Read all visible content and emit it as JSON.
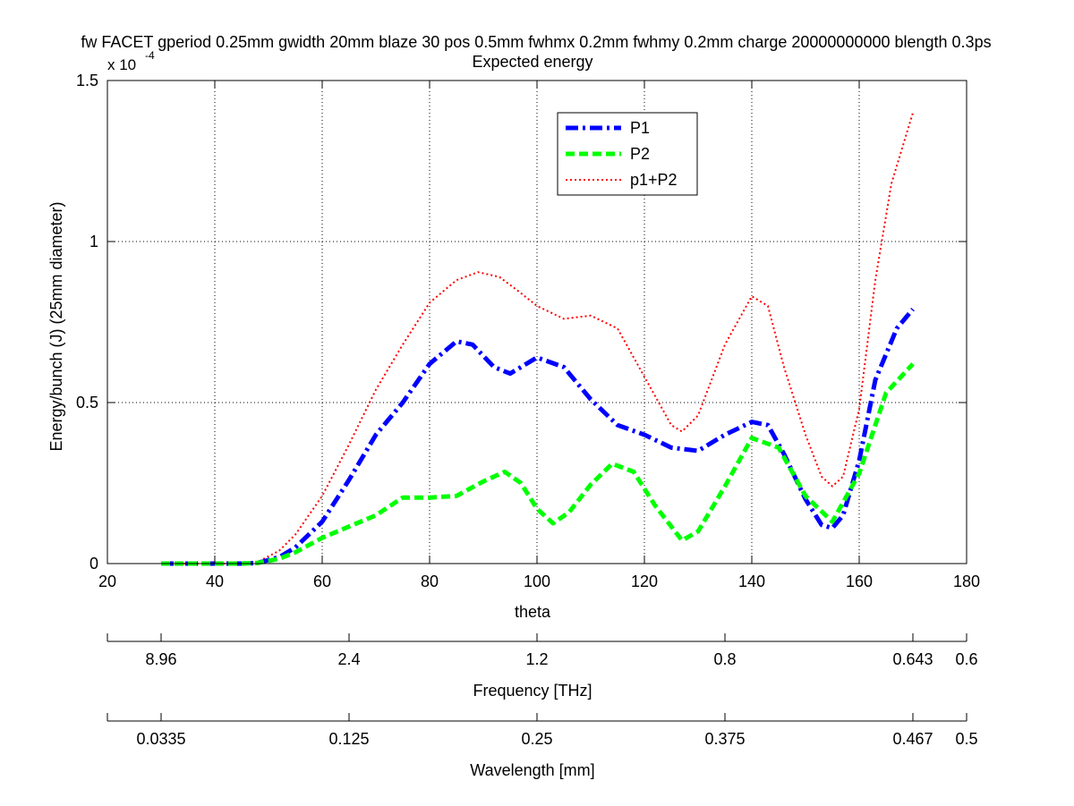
{
  "title": "fw FACET gperiod 0.25mm gwidth 20mm blaze 30 pos 0.5mm fwhmx 0.2mm fwhmy 0.2mm charge 20000000000 blength 0.3ps",
  "subtitle": "Expected energy",
  "exponent_base": "x 10",
  "exponent_power": "-4",
  "chart_data": {
    "type": "line",
    "title": "fw FACET gperiod 0.25mm gwidth 20mm blaze 30 pos 0.5mm fwhmx 0.2mm fwhmy 0.2mm charge 20000000000 blength 0.3ps",
    "subtitle": "Expected energy",
    "xlabel": "theta",
    "ylabel": "Energy/bunch (J) (25mm diameter)",
    "xlim": [
      20,
      180
    ],
    "ylim": [
      0,
      1.5
    ],
    "y_scale_multiplier": "x 10^-4",
    "xticks": [
      20,
      40,
      60,
      80,
      100,
      120,
      140,
      160,
      180
    ],
    "yticks": [
      0,
      0.5,
      1,
      1.5
    ],
    "ytick_labels": [
      "0",
      "0.5",
      "1",
      "1.5"
    ],
    "grid": true,
    "legend_position": "top-center",
    "series": [
      {
        "name": "P1",
        "color": "#0000ff",
        "style": "dash-dot",
        "x": [
          30,
          45,
          48,
          52,
          55,
          60,
          65,
          70,
          75,
          80,
          85,
          88,
          92,
          95,
          100,
          105,
          110,
          115,
          120,
          125,
          130,
          135,
          140,
          143,
          146,
          150,
          153,
          155,
          157,
          160,
          163,
          167,
          170
        ],
        "y": [
          0,
          0,
          0.002,
          0.02,
          0.05,
          0.13,
          0.26,
          0.4,
          0.5,
          0.62,
          0.69,
          0.68,
          0.61,
          0.59,
          0.64,
          0.61,
          0.51,
          0.43,
          0.4,
          0.36,
          0.35,
          0.4,
          0.44,
          0.43,
          0.34,
          0.2,
          0.12,
          0.11,
          0.15,
          0.32,
          0.57,
          0.73,
          0.79
        ]
      },
      {
        "name": "P2",
        "color": "#00ff00",
        "style": "dashed",
        "x": [
          30,
          45,
          48,
          52,
          55,
          60,
          65,
          70,
          75,
          80,
          85,
          90,
          94,
          97,
          100,
          103,
          106,
          110,
          114,
          118,
          122,
          127,
          130,
          135,
          140,
          145,
          150,
          155,
          160,
          165,
          170
        ],
        "y": [
          0,
          0,
          0.002,
          0.015,
          0.035,
          0.08,
          0.115,
          0.15,
          0.205,
          0.205,
          0.21,
          0.255,
          0.285,
          0.25,
          0.17,
          0.125,
          0.16,
          0.245,
          0.31,
          0.285,
          0.18,
          0.072,
          0.1,
          0.24,
          0.39,
          0.36,
          0.21,
          0.13,
          0.28,
          0.53,
          0.62
        ]
      },
      {
        "name": "p1+P2",
        "color": "#ff0000",
        "style": "dotted",
        "x": [
          30,
          45,
          48,
          52,
          55,
          60,
          65,
          70,
          75,
          80,
          85,
          89,
          93,
          97,
          100,
          105,
          110,
          115,
          120,
          125,
          127,
          130,
          135,
          140,
          143,
          146,
          150,
          153,
          155,
          157,
          160,
          163,
          166,
          170
        ],
        "y": [
          0,
          0,
          0.005,
          0.04,
          0.09,
          0.21,
          0.37,
          0.54,
          0.68,
          0.81,
          0.88,
          0.905,
          0.89,
          0.84,
          0.8,
          0.76,
          0.77,
          0.73,
          0.58,
          0.43,
          0.41,
          0.46,
          0.68,
          0.83,
          0.8,
          0.61,
          0.4,
          0.27,
          0.24,
          0.27,
          0.48,
          0.88,
          1.18,
          1.4
        ]
      }
    ]
  },
  "frequency_axis": {
    "label": "Frequency [THz]",
    "tick_labels": [
      "8.96",
      "2.4",
      "1.2",
      "0.8",
      "0.643",
      "0.6"
    ]
  },
  "wavelength_axis": {
    "label": "Wavelength [mm]",
    "tick_labels": [
      "0.0335",
      "0.125",
      "0.25",
      "0.375",
      "0.467",
      "0.5"
    ]
  }
}
